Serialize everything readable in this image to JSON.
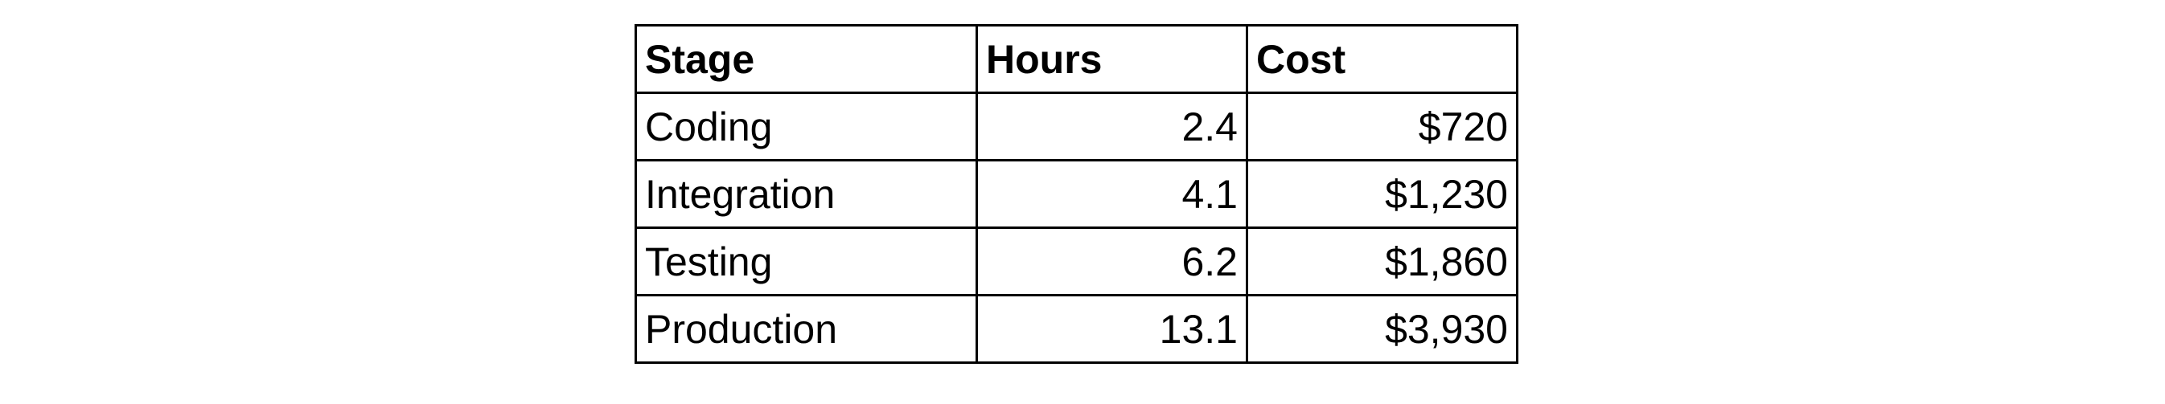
{
  "table": {
    "columns": [
      "Stage",
      "Hours",
      "Cost"
    ],
    "rows": [
      {
        "stage": "Coding",
        "hours": "2.4",
        "cost": "$720"
      },
      {
        "stage": "Integration",
        "hours": "4.1",
        "cost": "$1,230"
      },
      {
        "stage": "Testing",
        "hours": "6.2",
        "cost": "$1,860"
      },
      {
        "stage": "Production",
        "hours": "13.1",
        "cost": "$3,930"
      }
    ]
  }
}
